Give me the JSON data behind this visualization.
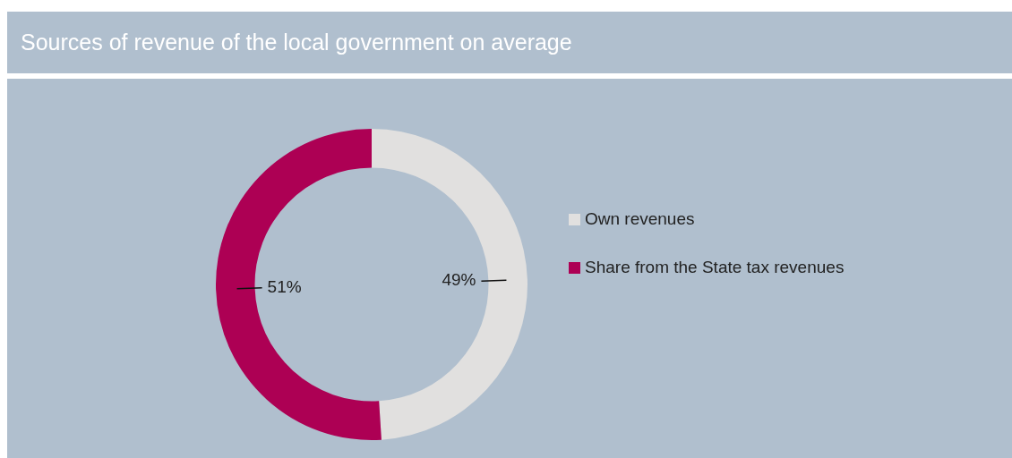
{
  "chart_data": {
    "type": "donut",
    "title": "Sources of revenue of the local government on average",
    "categories": [
      "Own revenues",
      "Share from the State tax revenues"
    ],
    "values": [
      49,
      51
    ],
    "value_labels": [
      "49%",
      "51%"
    ],
    "colors": [
      "#e1e0df",
      "#ad0054"
    ],
    "legend": "right"
  }
}
